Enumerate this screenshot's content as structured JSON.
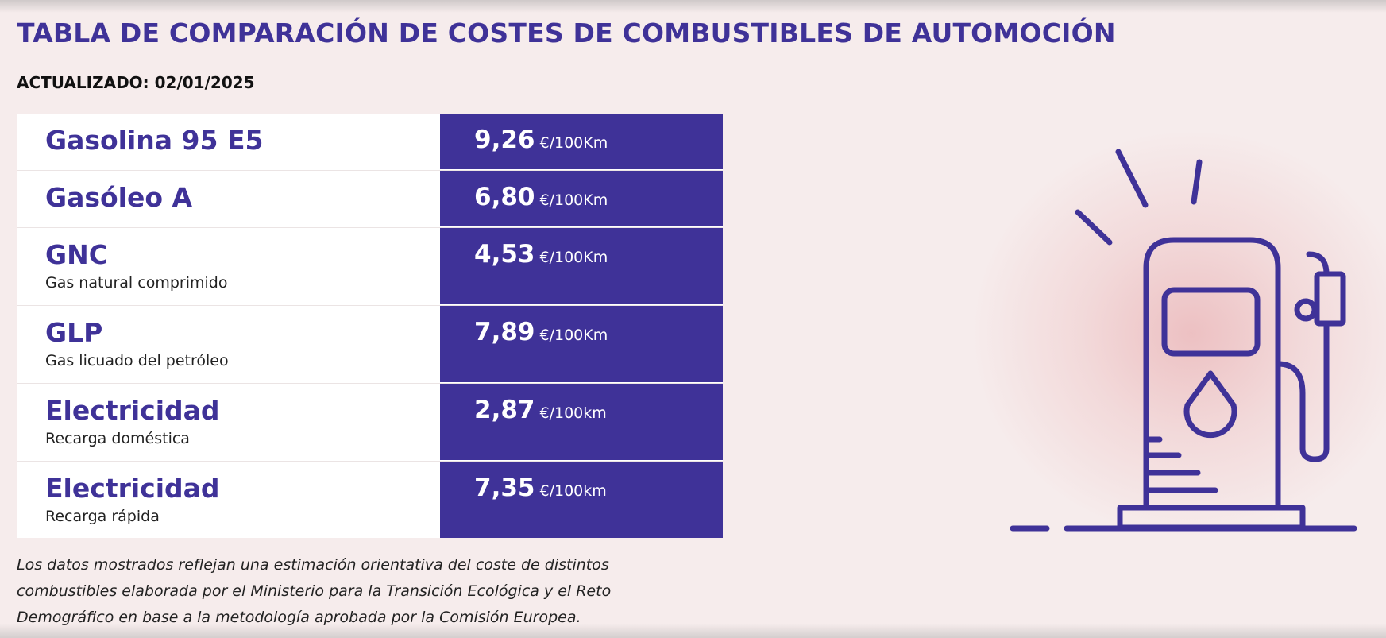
{
  "title": "TABLA DE COMPARACIÓN DE COSTES DE COMBUSTIBLES DE AUTOMOCIÓN",
  "updated": "ACTUALIZADO: 02/01/2025",
  "fuels": [
    {
      "name": "Gasolina 95 E5",
      "subtitle": "",
      "price": "9,26",
      "unit": "€/100Km"
    },
    {
      "name": "Gasóleo A",
      "subtitle": "",
      "price": "6,80",
      "unit": "€/100Km"
    },
    {
      "name": "GNC",
      "subtitle": "Gas natural comprimido",
      "price": "4,53",
      "unit": "€/100Km"
    },
    {
      "name": "GLP",
      "subtitle": "Gas licuado del petróleo",
      "price": "7,89",
      "unit": "€/100Km"
    },
    {
      "name": "Electricidad",
      "subtitle": "Recarga doméstica",
      "price": "2,87",
      "unit": "€/100km"
    },
    {
      "name": "Electricidad",
      "subtitle": "Recarga rápida",
      "price": "7,35",
      "unit": "€/100km"
    }
  ],
  "footnote": "Los datos mostrados reflejan una estimación orientativa del coste de distintos combustibles elaborada por el Ministerio para la Transición Ecológica y el Reto Demográfico en base a la metodología aprobada por la Comisión Europea.",
  "illustration": {
    "icon": "fuel-pump-icon"
  },
  "colors": {
    "accent": "#3f3298",
    "background": "#f6ecec",
    "glow": "#ecbec0",
    "text": "#222222"
  }
}
